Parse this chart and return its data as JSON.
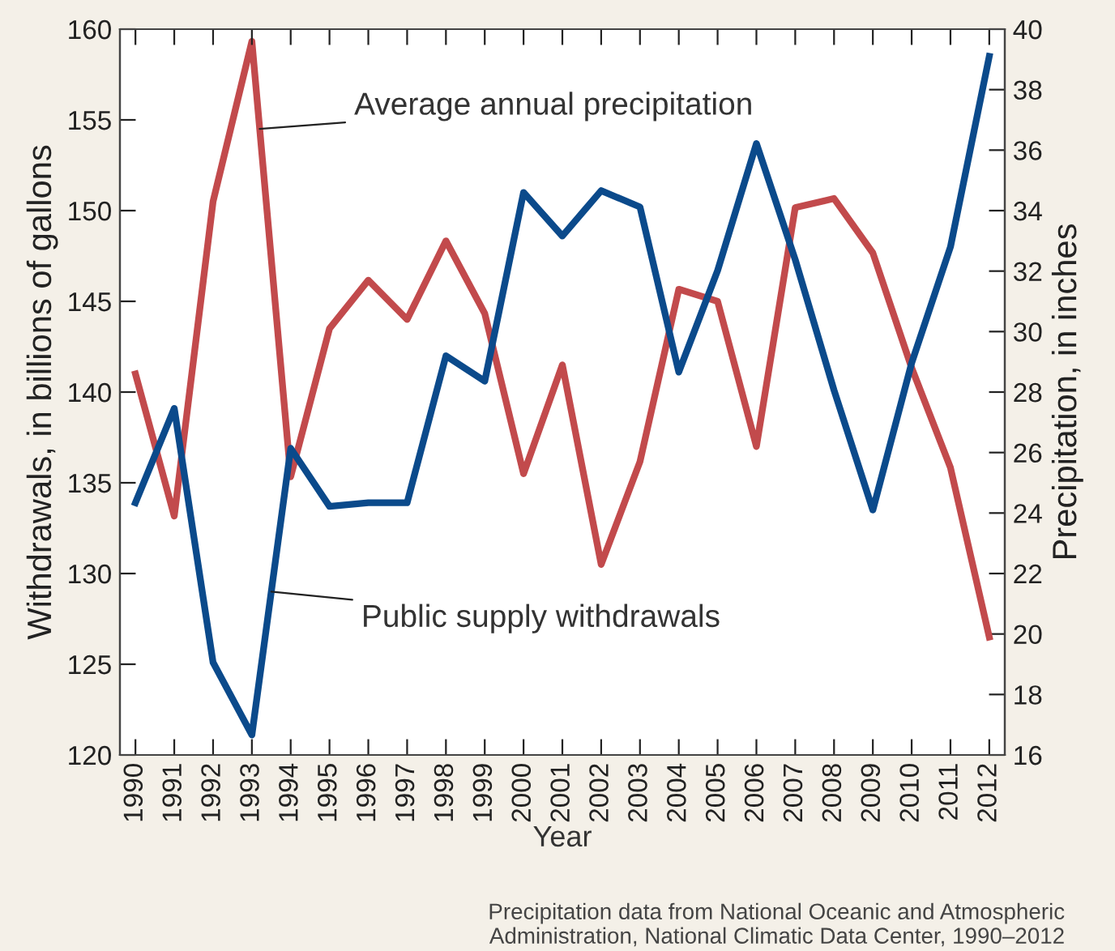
{
  "chart_data": {
    "type": "line",
    "xlabel": "Year",
    "ylabel": "Withdrawals, in billions of gallons",
    "y2label": "Precipitation, in inches",
    "x": [
      1990,
      1991,
      1992,
      1993,
      1994,
      1995,
      1996,
      1997,
      1998,
      1999,
      2000,
      2001,
      2002,
      2003,
      2004,
      2005,
      2006,
      2007,
      2008,
      2009,
      2010,
      2011,
      2012
    ],
    "xlim": [
      1989.6,
      2012.4
    ],
    "xticks": [
      1990,
      1991,
      1992,
      1993,
      1994,
      1995,
      1996,
      1997,
      1998,
      1999,
      2000,
      2001,
      2002,
      2003,
      2004,
      2005,
      2006,
      2007,
      2008,
      2009,
      2010,
      2011,
      2012
    ],
    "ylim": [
      120,
      160
    ],
    "yticks": [
      120,
      125,
      130,
      135,
      140,
      145,
      150,
      155,
      160
    ],
    "y2lim": [
      16,
      40
    ],
    "y2ticks": [
      16,
      18,
      20,
      22,
      24,
      26,
      28,
      30,
      32,
      34,
      36,
      38,
      40
    ],
    "series": [
      {
        "color": "#0b4a8b",
        "values": [
          133.9,
          139.1,
          125.1,
          121.1,
          136.9,
          133.7,
          133.9,
          133.9,
          142.0,
          140.6,
          151.0,
          148.6,
          151.1,
          150.2,
          141.1,
          146.7,
          153.7,
          147.3,
          140.1,
          133.5,
          141.6,
          148.0,
          158.5
        ]
      },
      {
        "color": "#c24a4c",
        "axis": "y2",
        "values": [
          28.6,
          23.9,
          34.3,
          39.6,
          25.2,
          30.1,
          31.7,
          30.4,
          33.0,
          30.6,
          25.3,
          28.9,
          22.3,
          25.7,
          31.4,
          31.0,
          26.2,
          34.1,
          34.4,
          32.6,
          28.8,
          25.5,
          19.9
        ]
      }
    ],
    "annotations": [
      {
        "text": "Average annual precipitation",
        "x": 1993.2,
        "y": 154.5
      },
      {
        "text": "Public supply withdrawals",
        "x": 1993.5,
        "y": 129.0
      },
      "Precipitation data from National Oceanic and Atmospheric\nAdministration, National Climatic Data Center, 1990–2012"
    ],
    "grid": false,
    "legend": false,
    "marker": "none",
    "line_style": "solid"
  }
}
